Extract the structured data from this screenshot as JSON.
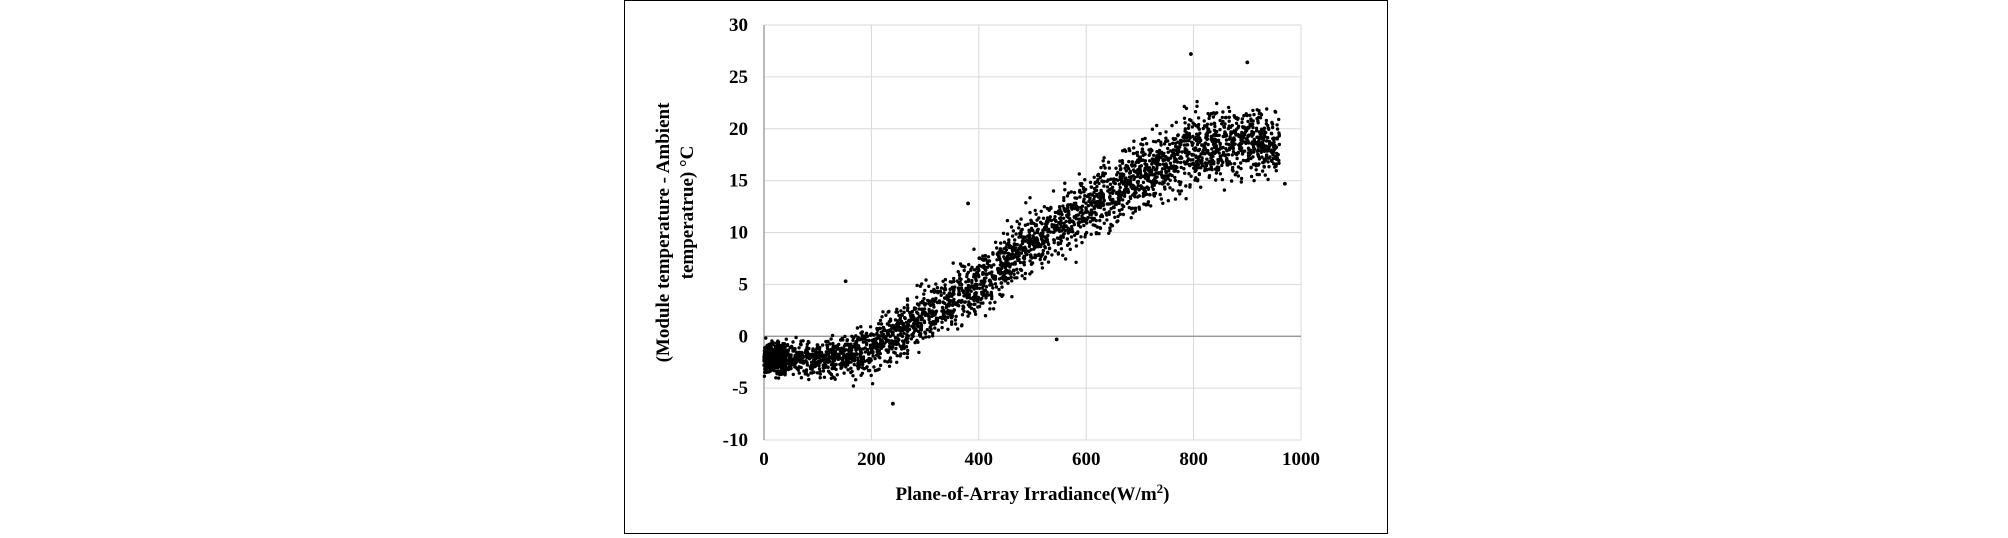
{
  "chart_data": {
    "type": "scatter",
    "xlabel": "Plane-of-Array Irradiance(W/m",
    "xlabel_sup": "2",
    "xlabel_end": ")",
    "ylabel_line1": "(Module temperature - Ambient",
    "ylabel_line2": "temperatrue) °C",
    "xlim": [
      0,
      1000
    ],
    "ylim": [
      -10,
      30
    ],
    "x_ticks": [
      "0",
      "200",
      "400",
      "600",
      "800",
      "1000"
    ],
    "y_ticks": [
      "30",
      "25",
      "20",
      "15",
      "10",
      "5",
      "0",
      "-5",
      "-10"
    ],
    "grid": true,
    "marker_color": "#000000",
    "trend": [
      {
        "x": 0,
        "y": -2.0,
        "spread": 1.6
      },
      {
        "x": 100,
        "y": -2.3,
        "spread": 2.0
      },
      {
        "x": 200,
        "y": -1.2,
        "spread": 2.6
      },
      {
        "x": 300,
        "y": 2.0,
        "spread": 3.0
      },
      {
        "x": 400,
        "y": 5.0,
        "spread": 3.2
      },
      {
        "x": 500,
        "y": 9.0,
        "spread": 3.4
      },
      {
        "x": 600,
        "y": 12.5,
        "spread": 3.6
      },
      {
        "x": 700,
        "y": 15.5,
        "spread": 3.8
      },
      {
        "x": 800,
        "y": 18.0,
        "spread": 4.0
      },
      {
        "x": 900,
        "y": 19.0,
        "spread": 4.2
      },
      {
        "x": 970,
        "y": 18.0,
        "spread": 3.0
      }
    ],
    "n_points": 3600,
    "highlights": [
      {
        "x": 795,
        "y": 27.2
      },
      {
        "x": 900,
        "y": 26.4
      },
      {
        "x": 152,
        "y": 5.3
      },
      {
        "x": 380,
        "y": 12.8
      },
      {
        "x": 240,
        "y": -6.5
      },
      {
        "x": 970,
        "y": 14.7
      },
      {
        "x": 545,
        "y": -0.3
      }
    ]
  }
}
